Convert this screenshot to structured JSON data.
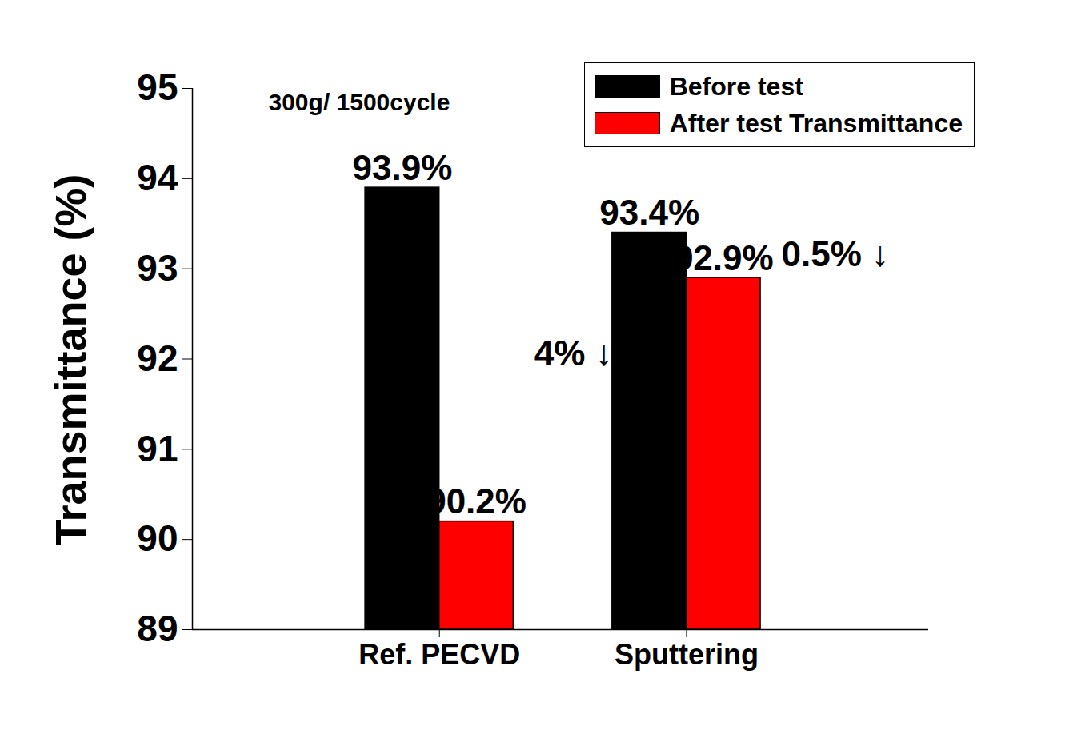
{
  "chart_data": {
    "type": "bar",
    "y_label": "Transmittance (%)",
    "annotations": [
      {
        "text": "300g/ 1500cycle"
      },
      {
        "text": "4% ↓",
        "category": "Ref. PECVD"
      },
      {
        "text": "0.5% ↓",
        "category": "Sputtering"
      }
    ],
    "categories": [
      "Ref. PECVD",
      "Sputtering"
    ],
    "series": [
      {
        "name": "Before test",
        "color": "#000000",
        "values": [
          93.9,
          93.4
        ],
        "value_labels": [
          "93.9%",
          "93.4%"
        ]
      },
      {
        "name": "After test Transmittance",
        "color": "#ff0000",
        "values": [
          90.2,
          92.9
        ],
        "value_labels": [
          "90.2%",
          "92.9%"
        ]
      }
    ],
    "ylim": [
      89,
      95
    ],
    "yticks": [
      89,
      90,
      91,
      92,
      93,
      94,
      95
    ],
    "grid": false,
    "data_labels": true,
    "legend": "top-right"
  }
}
